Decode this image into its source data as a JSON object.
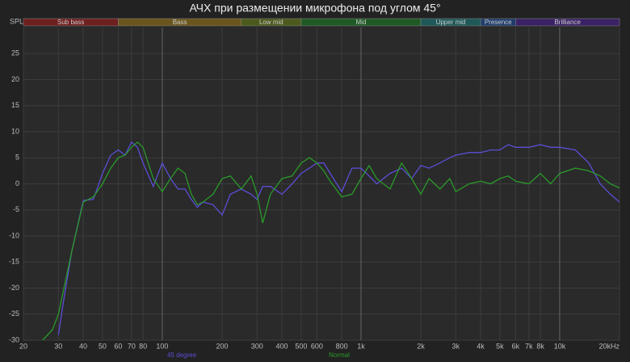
{
  "chart_data": {
    "type": "line",
    "title": "АЧХ при размещении микрофона под углом 45°",
    "y_label": "SPL",
    "log_x": true,
    "grid": true,
    "xlim": [
      20,
      20000
    ],
    "ylim": [
      -30,
      30
    ],
    "xticks": [
      20,
      30,
      40,
      50,
      60,
      70,
      80,
      100,
      200,
      300,
      400,
      500,
      600,
      800,
      {
        "value": 1000,
        "label": "1k"
      },
      {
        "value": 2000,
        "label": "2k"
      },
      {
        "value": 3000,
        "label": "3k"
      },
      {
        "value": 4000,
        "label": "4k"
      },
      {
        "value": 5000,
        "label": "5k"
      },
      {
        "value": 6000,
        "label": "6k"
      },
      {
        "value": 7000,
        "label": "7k"
      },
      {
        "value": 8000,
        "label": "8k"
      },
      {
        "value": 10000,
        "label": "10k"
      },
      {
        "value": 20000,
        "label": "20kHz"
      }
    ],
    "yticks": [
      -30,
      -25,
      -20,
      -15,
      -10,
      -5,
      0,
      5,
      10,
      15,
      20,
      25
    ],
    "bands": [
      {
        "name": "Sub bass",
        "color": "#6e1f1f",
        "from": 20,
        "to": 60
      },
      {
        "name": "Bass",
        "color": "#6a561d",
        "from": 60,
        "to": 250
      },
      {
        "name": "Low mid",
        "color": "#4c5a1d",
        "from": 250,
        "to": 500
      },
      {
        "name": "Mid",
        "color": "#1f5a26",
        "from": 500,
        "to": 2000
      },
      {
        "name": "Upper mid",
        "color": "#1f5858",
        "from": 2000,
        "to": 4000
      },
      {
        "name": "Presence",
        "color": "#1f3d6a",
        "from": 4000,
        "to": 6000
      },
      {
        "name": "Brilliance",
        "color": "#3b2266",
        "from": 6000,
        "to": 20000
      }
    ],
    "x": [
      25,
      28,
      30,
      32,
      35,
      40,
      45,
      50,
      55,
      60,
      65,
      70,
      75,
      80,
      90,
      100,
      110,
      120,
      130,
      140,
      150,
      160,
      180,
      200,
      220,
      250,
      280,
      300,
      320,
      350,
      400,
      450,
      500,
      550,
      600,
      650,
      700,
      800,
      900,
      1000,
      1100,
      1200,
      1400,
      1600,
      1800,
      2000,
      2200,
      2500,
      2800,
      3000,
      3500,
      4000,
      4500,
      5000,
      5500,
      6000,
      7000,
      8000,
      9000,
      10000,
      12000,
      14000,
      16000,
      18000,
      20000
    ],
    "series": [
      {
        "name": "45 degree",
        "color": "#5a4ed6",
        "values": [
          null,
          null,
          -29,
          -22,
          -13,
          -3.2,
          -3,
          2,
          5.5,
          6.5,
          5.5,
          8,
          7,
          4,
          -0.5,
          4,
          1,
          -1,
          -1,
          -3,
          -4.5,
          -3.5,
          -4,
          -6,
          -2,
          -1,
          -2,
          -3,
          -0.5,
          -0.5,
          -2,
          0,
          2,
          3,
          4,
          4,
          2,
          -1.5,
          3,
          3,
          1.5,
          0,
          2,
          3,
          1,
          3.5,
          3,
          4,
          5,
          5.5,
          6,
          6,
          6.5,
          6.5,
          7.5,
          7,
          7,
          7.5,
          7,
          7,
          6.5,
          4,
          0,
          -2,
          -3.5
        ]
      },
      {
        "name": "Normal",
        "color": "#2a9a2a",
        "values": [
          -30,
          -28,
          -25,
          -20,
          -13,
          -3.5,
          -2.5,
          0,
          3,
          5,
          5.5,
          7,
          8,
          7,
          1,
          -1.5,
          1,
          3,
          2,
          -2,
          -4,
          -3.5,
          -2,
          1,
          1.5,
          -1,
          1.5,
          -2,
          -7.5,
          -2,
          1,
          1.5,
          4,
          5,
          4,
          2.5,
          0.5,
          -2.5,
          -2,
          1,
          3.5,
          1,
          -1,
          4,
          1,
          -2,
          1,
          -1,
          1,
          -1.5,
          0,
          0.5,
          0,
          1,
          1.5,
          0.5,
          0,
          2,
          0,
          2,
          3,
          2.5,
          1.5,
          0,
          -0.8
        ]
      }
    ]
  }
}
